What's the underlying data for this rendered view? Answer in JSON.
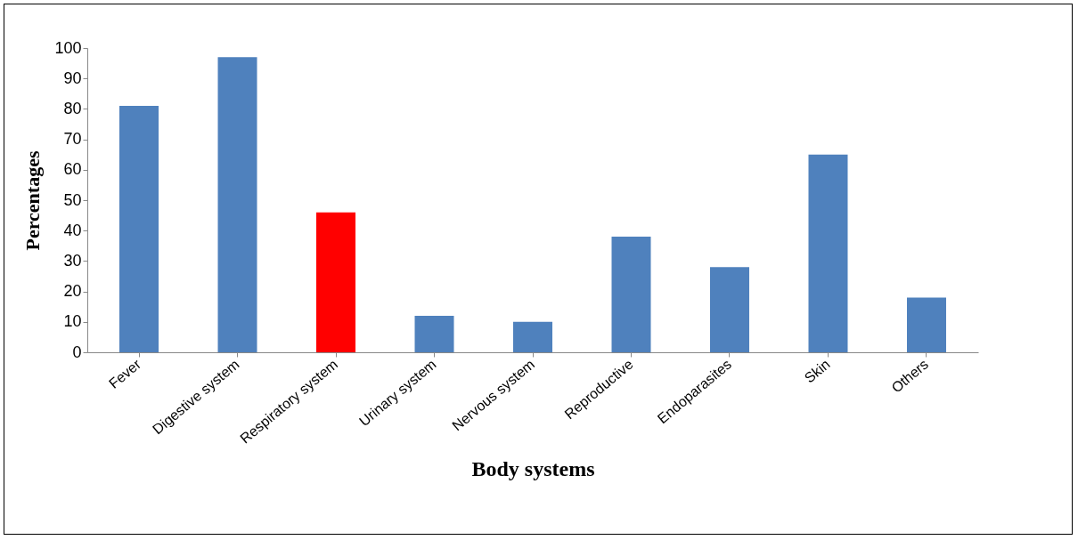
{
  "chart_data": {
    "type": "bar",
    "xlabel": "Body systems",
    "ylabel": "Percentages",
    "categories": [
      "Fever",
      "Digestive system",
      "Respiratory system",
      "Urinary system",
      "Nervous system",
      "Reproductive",
      "Endoparasites",
      "Skin",
      "Others"
    ],
    "values": [
      81,
      97,
      46,
      12,
      10,
      38,
      28,
      65,
      18
    ],
    "colors": [
      "#4f81bd",
      "#4f81bd",
      "#ff0000",
      "#4f81bd",
      "#4f81bd",
      "#4f81bd",
      "#4f81bd",
      "#4f81bd",
      "#4f81bd"
    ],
    "ylim": [
      0,
      100
    ],
    "yticks": [
      0,
      10,
      20,
      30,
      40,
      50,
      60,
      70,
      80,
      90,
      100
    ],
    "grid": false
  }
}
